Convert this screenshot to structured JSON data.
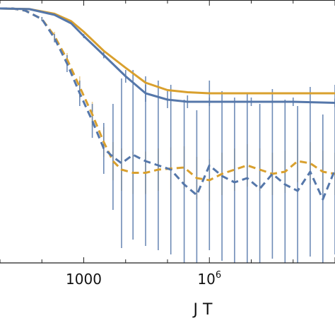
{
  "chart_data": {
    "type": "line",
    "xlabel": "J T",
    "ylabel": "",
    "x_scale": "log",
    "xlim": [
      10,
      1000000000
    ],
    "ylim": [
      -0.2,
      1.04
    ],
    "grid": false,
    "legend": "none",
    "x_ticks": [
      {
        "value": 1000,
        "base": "1000",
        "exp": ""
      },
      {
        "value": 1000000,
        "base": "10",
        "exp": "6"
      }
    ],
    "series": [
      {
        "color": "#d9a02e",
        "style": "solid",
        "error_bars": false,
        "points": [
          [
            10,
            1.0
          ],
          [
            50,
            0.997
          ],
          [
            200,
            0.975
          ],
          [
            500,
            0.94
          ],
          [
            1000,
            0.89
          ],
          [
            3000,
            0.8
          ],
          [
            10000,
            0.72
          ],
          [
            30000,
            0.65
          ],
          [
            100000,
            0.615
          ],
          [
            300000,
            0.605
          ],
          [
            1000000,
            0.6
          ],
          [
            10000000,
            0.6
          ],
          [
            100000000,
            0.6
          ],
          [
            1000000000,
            0.6
          ]
        ]
      },
      {
        "color": "#5577aa",
        "style": "solid",
        "error_bars": true,
        "points": [
          [
            10,
            1.0
          ],
          [
            50,
            0.997
          ],
          [
            200,
            0.97
          ],
          [
            500,
            0.93
          ],
          [
            1000,
            0.87
          ],
          [
            3000,
            0.78
          ],
          [
            10000,
            0.68
          ],
          [
            30000,
            0.6
          ],
          [
            100000,
            0.57
          ],
          [
            300000,
            0.56
          ],
          [
            1000000,
            0.56
          ],
          [
            10000000,
            0.56
          ],
          [
            100000000,
            0.56
          ],
          [
            1000000000,
            0.555
          ]
        ],
        "error": [
          0,
          0,
          0,
          0,
          0.01,
          0.015,
          0.03,
          0.04,
          0.04,
          0.03,
          0.02,
          0.02,
          0.02,
          0.02
        ]
      },
      {
        "color": "#d9a02e",
        "style": "dashed",
        "error_bars": true,
        "points": [
          [
            10,
            1.0
          ],
          [
            20,
            1.0
          ],
          [
            40,
            0.99
          ],
          [
            100,
            0.95
          ],
          [
            200,
            0.87
          ],
          [
            400,
            0.76
          ],
          [
            800,
            0.63
          ],
          [
            1600,
            0.5
          ],
          [
            3000,
            0.37
          ],
          [
            5000,
            0.28
          ],
          [
            8000,
            0.24
          ],
          [
            15000,
            0.225
          ],
          [
            30000,
            0.225
          ],
          [
            60000,
            0.24
          ],
          [
            120000,
            0.245
          ],
          [
            250000,
            0.25
          ],
          [
            500000,
            0.2
          ],
          [
            1000000,
            0.19
          ],
          [
            2000000,
            0.22
          ],
          [
            4000000,
            0.24
          ],
          [
            8000000,
            0.26
          ],
          [
            16000000,
            0.24
          ],
          [
            32000000,
            0.22
          ],
          [
            64000000,
            0.23
          ],
          [
            128000000,
            0.28
          ],
          [
            256000000,
            0.27
          ],
          [
            512000000,
            0.23
          ],
          [
            1000000000,
            0.22
          ]
        ],
        "error": [
          0,
          0,
          0,
          0.01,
          0.02,
          0.03,
          0.05,
          0.06,
          0.07,
          0.09,
          0.1,
          0.1,
          0.1,
          0.1,
          0.1,
          0.1,
          0.1,
          0.1,
          0.1,
          0.1,
          0.1,
          0.1,
          0.1,
          0.1,
          0.1,
          0.1,
          0.1,
          0.1
        ]
      },
      {
        "color": "#5577aa",
        "style": "dashed",
        "error_bars": true,
        "points": [
          [
            10,
            1.0
          ],
          [
            20,
            1.0
          ],
          [
            40,
            0.99
          ],
          [
            100,
            0.95
          ],
          [
            200,
            0.86
          ],
          [
            400,
            0.74
          ],
          [
            800,
            0.6
          ],
          [
            1600,
            0.47
          ],
          [
            3000,
            0.34
          ],
          [
            5000,
            0.3
          ],
          [
            8000,
            0.27
          ],
          [
            15000,
            0.31
          ],
          [
            30000,
            0.28
          ],
          [
            60000,
            0.26
          ],
          [
            120000,
            0.24
          ],
          [
            250000,
            0.17
          ],
          [
            500000,
            0.12
          ],
          [
            1000000,
            0.26
          ],
          [
            2000000,
            0.21
          ],
          [
            4000000,
            0.18
          ],
          [
            8000000,
            0.2
          ],
          [
            16000000,
            0.15
          ],
          [
            32000000,
            0.22
          ],
          [
            64000000,
            0.17
          ],
          [
            128000000,
            0.14
          ],
          [
            256000000,
            0.23
          ],
          [
            512000000,
            0.1
          ],
          [
            1000000000,
            0.24
          ]
        ],
        "error": [
          0,
          0,
          0,
          0.01,
          0.02,
          0.04,
          0.06,
          0.08,
          0.12,
          0.25,
          0.4,
          0.4,
          0.4,
          0.4,
          0.4,
          0.4,
          0.4,
          0.4,
          0.4,
          0.4,
          0.4,
          0.4,
          0.4,
          0.4,
          0.4,
          0.4,
          0.4,
          0.4
        ]
      }
    ]
  }
}
